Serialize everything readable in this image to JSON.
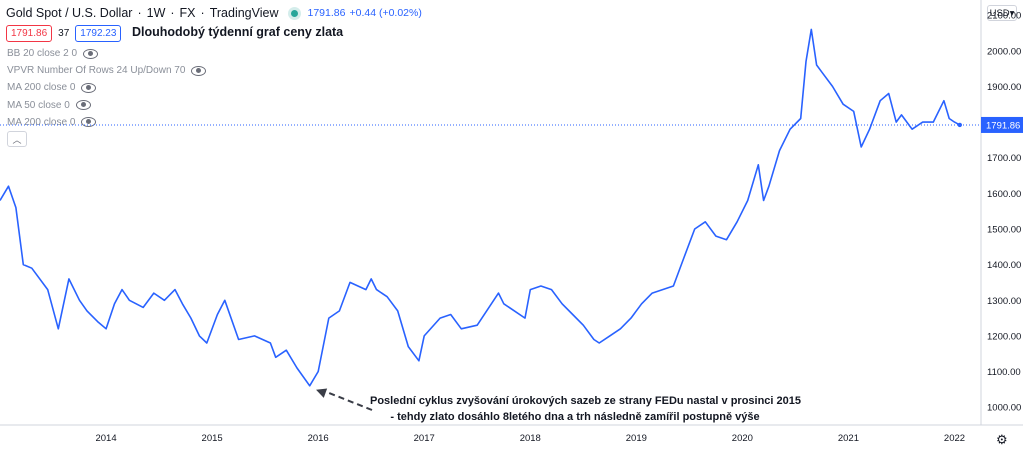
{
  "header": {
    "symbol": "Gold Spot / U.S. Dollar",
    "interval": "1W",
    "exchange": "FX",
    "provider": "TradingView",
    "last_price": "1791.86",
    "change": "+0.44 (+0.02%)"
  },
  "quote": {
    "sell": "1791.86",
    "spread": "37",
    "buy": "1792.23"
  },
  "chart_title": "Dlouhodobý týdenní graf ceny zlata",
  "indicators": [
    "BB 20 close 2 0",
    "VPVR Number Of Rows 24 Up/Down 70",
    "MA 200 close 0",
    "MA 50 close 0",
    "MA 200 close 0"
  ],
  "currency_button": "USD",
  "colors": {
    "line": "#2962ff",
    "last_price_tag": "#2962ff",
    "grid": "#ffffff",
    "axis_text": "#131722"
  },
  "annotation": {
    "line1": "Poslední cyklus zvyšování úrokových sazeb ze strany FEDu nastal v prosinci 2015",
    "line2": "- tehdy zlato dosáhlo 8letého dna a trh následně zamířil postupně výše"
  },
  "chart_data": {
    "type": "line",
    "series": [
      {
        "x": [
          2013.0,
          2013.08,
          2013.15,
          2013.22,
          2013.3,
          2013.45,
          2013.55,
          2013.65,
          2013.75,
          2013.82,
          2013.92,
          2014.0,
          2014.08,
          2014.15,
          2014.22,
          2014.35,
          2014.45,
          2014.55,
          2014.65,
          2014.72,
          2014.8,
          2014.88,
          2014.95,
          2015.05,
          2015.12,
          2015.25,
          2015.4,
          2015.55,
          2015.6,
          2015.7,
          2015.8,
          2015.92,
          2016.0,
          2016.1,
          2016.2,
          2016.3,
          2016.45,
          2016.5,
          2016.55,
          2016.65,
          2016.75,
          2016.85,
          2016.95,
          2017.0,
          2017.15,
          2017.25,
          2017.35,
          2017.5,
          2017.7,
          2017.75,
          2017.85,
          2017.95,
          2018.0,
          2018.1,
          2018.2,
          2018.3,
          2018.4,
          2018.5,
          2018.6,
          2018.65,
          2018.75,
          2018.85,
          2018.95,
          2019.05,
          2019.15,
          2019.35,
          2019.45,
          2019.55,
          2019.65,
          2019.75,
          2019.85,
          2019.95,
          2020.05,
          2020.15,
          2020.2,
          2020.25,
          2020.35,
          2020.45,
          2020.55,
          2020.6,
          2020.65,
          2020.7,
          2020.75,
          2020.85,
          2020.95,
          2021.05,
          2021.12,
          2021.2,
          2021.3,
          2021.38,
          2021.45,
          2021.5,
          2021.6,
          2021.7,
          2021.8,
          2021.9,
          2021.95,
          2022.0,
          2022.05
        ],
        "values": [
          1580,
          1620,
          1560,
          1400,
          1390,
          1330,
          1220,
          1360,
          1300,
          1270,
          1240,
          1220,
          1290,
          1330,
          1300,
          1280,
          1320,
          1300,
          1330,
          1290,
          1250,
          1200,
          1180,
          1260,
          1300,
          1190,
          1200,
          1180,
          1140,
          1160,
          1110,
          1060,
          1100,
          1250,
          1270,
          1350,
          1330,
          1360,
          1330,
          1310,
          1270,
          1170,
          1130,
          1200,
          1250,
          1260,
          1220,
          1230,
          1320,
          1290,
          1270,
          1250,
          1330,
          1340,
          1330,
          1290,
          1260,
          1230,
          1190,
          1180,
          1200,
          1220,
          1250,
          1290,
          1320,
          1340,
          1420,
          1500,
          1520,
          1480,
          1470,
          1520,
          1580,
          1680,
          1580,
          1620,
          1720,
          1780,
          1810,
          1970,
          2060,
          1960,
          1940,
          1900,
          1850,
          1830,
          1730,
          1780,
          1860,
          1880,
          1800,
          1820,
          1780,
          1800,
          1800,
          1860,
          1810,
          1800,
          1792
        ]
      }
    ],
    "xlim": [
      2013.0,
      2022.25
    ],
    "ylim": [
      950,
      2120
    ],
    "x_ticks": [
      "2014",
      "2015",
      "2016",
      "2017",
      "2018",
      "2019",
      "2020",
      "2021",
      "2022"
    ],
    "y_ticks": [
      "1000.00",
      "1100.00",
      "1200.00",
      "1300.00",
      "1400.00",
      "1500.00",
      "1600.00",
      "1700.00",
      "1800.00",
      "1900.00",
      "2000.00",
      "2100.00"
    ],
    "last_value_label": "1791.86",
    "legend": "none",
    "grid": false
  }
}
